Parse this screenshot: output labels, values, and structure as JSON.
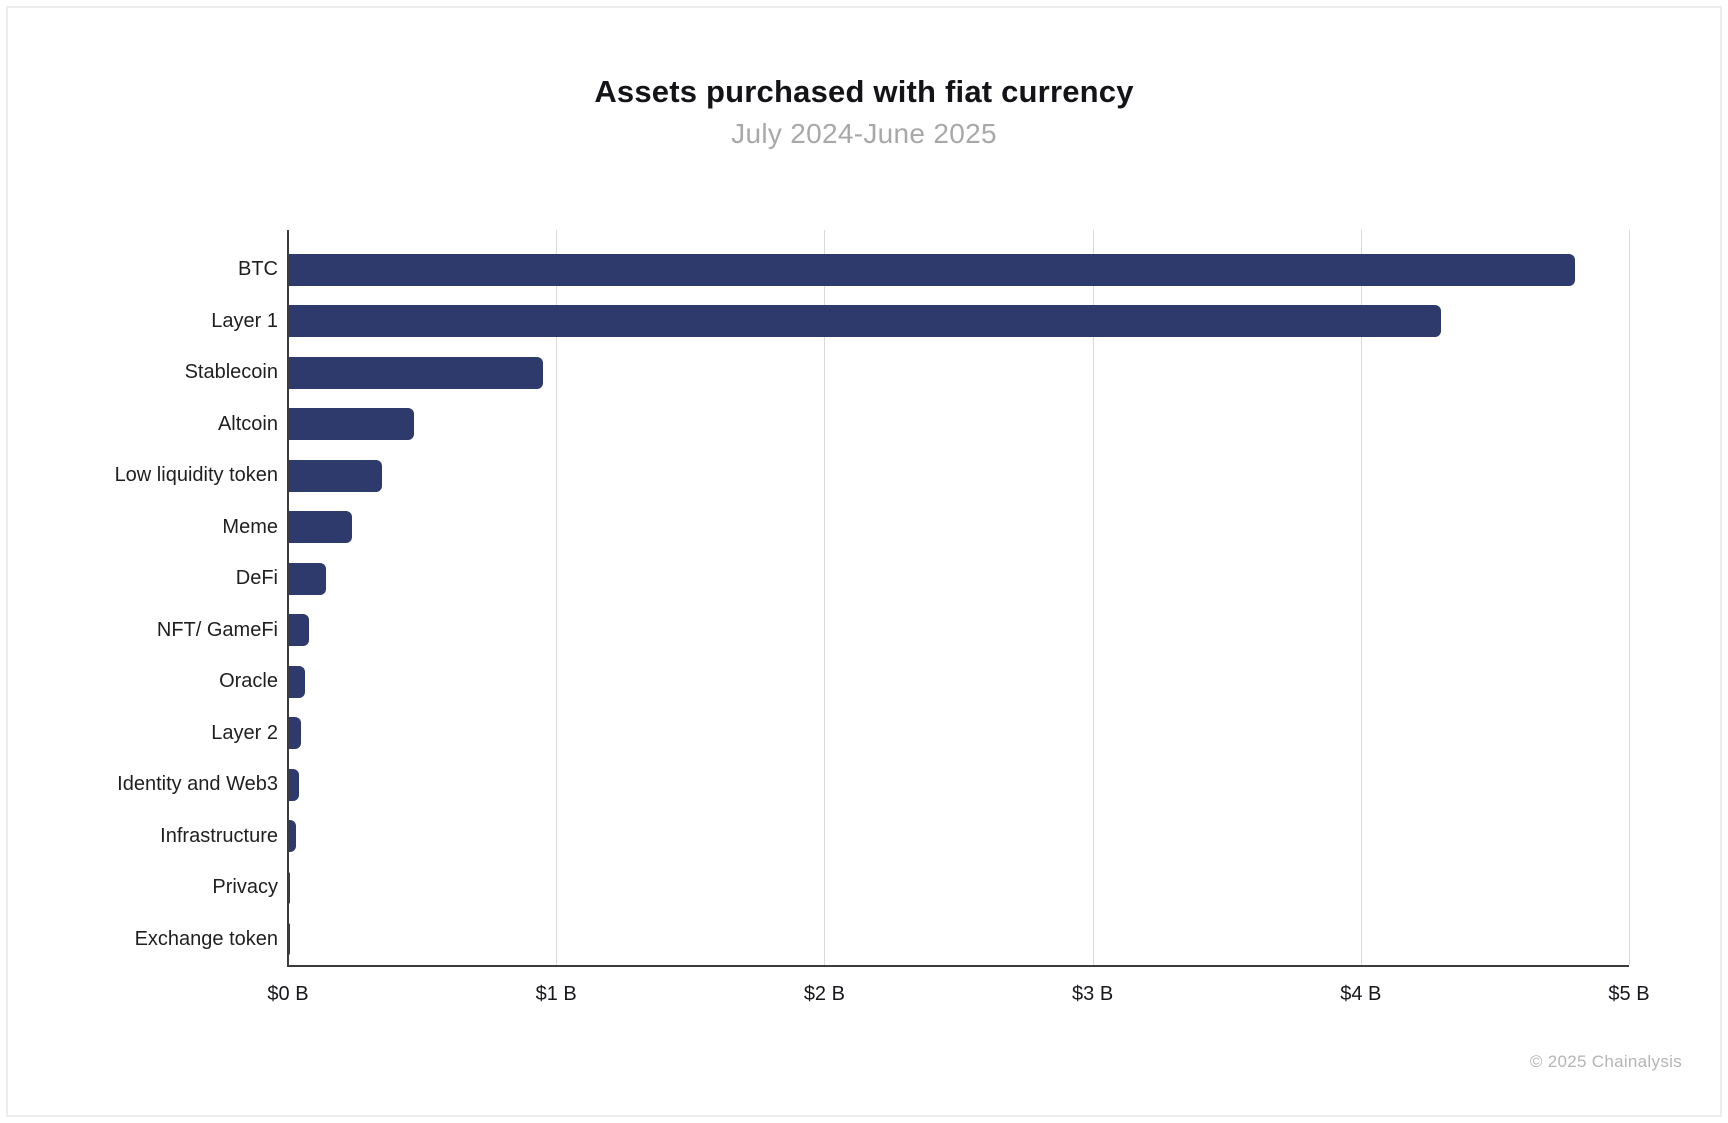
{
  "header": {
    "title": "Assets purchased with fiat currency",
    "subtitle": "July 2024-June 2025"
  },
  "chart_data": {
    "type": "bar",
    "orientation": "horizontal",
    "title": "Assets purchased with fiat currency",
    "subtitle": "July 2024-June 2025",
    "categories": [
      "BTC",
      "Layer 1",
      "Stablecoin",
      "Altcoin",
      "Low liquidity token",
      "Meme",
      "DeFi",
      "NFT/ GameFi",
      "Oracle",
      "Layer 2",
      "Identity and Web3",
      "Infrastructure",
      "Privacy",
      "Exchange token"
    ],
    "values": [
      4.8,
      4.3,
      0.95,
      0.47,
      0.35,
      0.24,
      0.14,
      0.08,
      0.065,
      0.05,
      0.04,
      0.03,
      0.006,
      0.004
    ],
    "value_unit": "billions USD",
    "xlim": [
      0,
      5
    ],
    "x_tick_labels": [
      "$0 B",
      "$1 B",
      "$2 B",
      "$3 B",
      "$4 B",
      "$5 B"
    ],
    "x_tick_values": [
      0,
      1,
      2,
      3,
      4,
      5
    ],
    "grid": true,
    "legend": false,
    "colors": {
      "bar": "#2d3a6b",
      "gridline": "#d9d9d9",
      "axis": "#3c3c3c",
      "title": "#131318",
      "subtitle": "#a8a8a8",
      "tick_label": "#17171c",
      "category_label": "#1f1f1f"
    }
  },
  "footer": {
    "copyright": "© 2025 Chainalysis"
  }
}
